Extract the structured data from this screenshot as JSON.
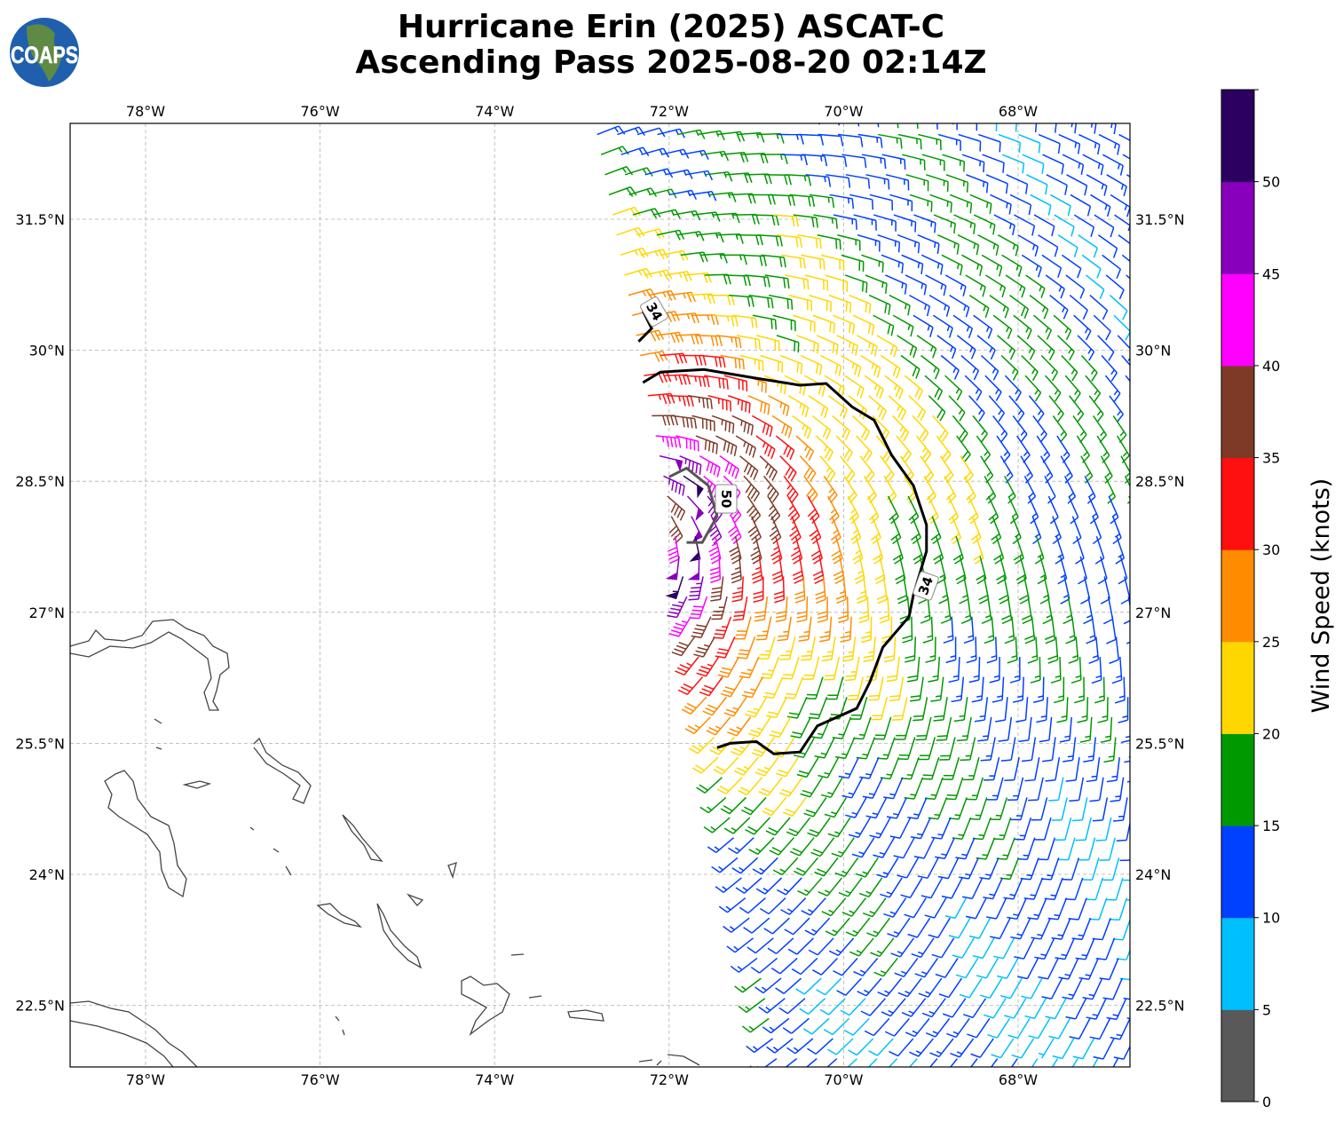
{
  "title": {
    "line1": "Hurricane Erin (2025) ASCAT-C",
    "line2": "Ascending Pass 2025-08-20 02:14Z"
  },
  "logo": {
    "text": "COAPS"
  },
  "map": {
    "lon_ticks": [
      "78°W",
      "76°W",
      "74°W",
      "72°W",
      "70°W",
      "68°W"
    ],
    "lat_ticks": [
      "31.5°N",
      "30°N",
      "28.5°N",
      "27°N",
      "25.5°N",
      "24°N",
      "22.5°N"
    ],
    "contour_labels": [
      "34",
      "50",
      "34"
    ]
  },
  "colorbar": {
    "label": "Wind Speed (knots)",
    "ticks": [
      "0",
      "5",
      "10",
      "15",
      "20",
      "25",
      "30",
      "35",
      "40",
      "45",
      "50"
    ],
    "bins": [
      0,
      5,
      10,
      15,
      20,
      25,
      30,
      35,
      40,
      45,
      50,
      55
    ],
    "colors": [
      "#595959",
      "#00bfff",
      "#0040ff",
      "#009900",
      "#ffd700",
      "#ff8c00",
      "#ff1010",
      "#7f3a27",
      "#ff00ff",
      "#8800bb",
      "#2b005f"
    ]
  }
}
